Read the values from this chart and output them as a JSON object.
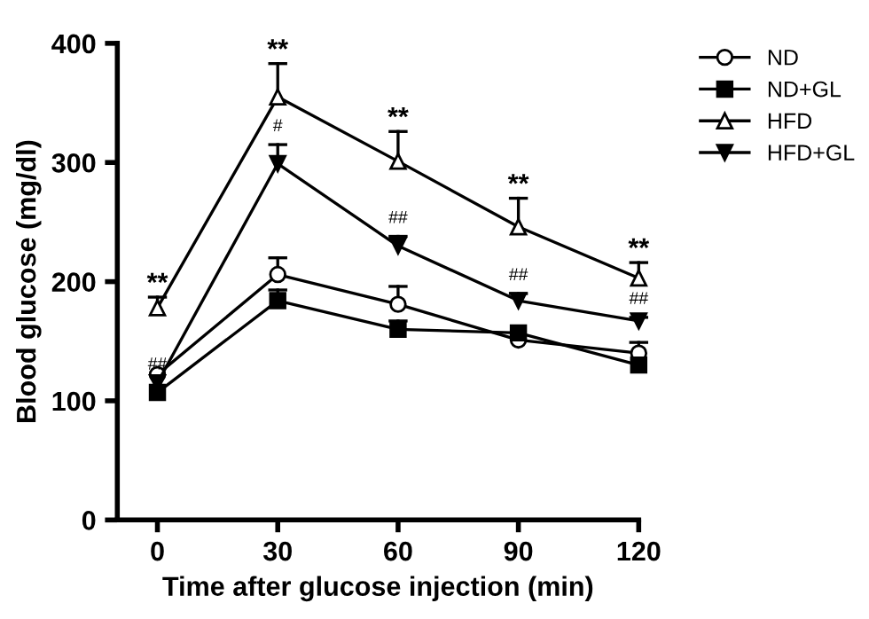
{
  "chart_data": {
    "type": "line",
    "xlabel": "Time after glucose injection (min)",
    "ylabel": "Blood glucose (mg/dl)",
    "x": [
      0,
      30,
      60,
      90,
      120
    ],
    "xlim": [
      -10,
      120
    ],
    "xticks": [
      0,
      30,
      60,
      90,
      120
    ],
    "ylim": [
      0,
      400
    ],
    "yticks": [
      0,
      100,
      200,
      300,
      400
    ],
    "grid": false,
    "legend": "top right",
    "line_style": "solid",
    "series": [
      {
        "name": "ND",
        "color": "#000000",
        "marker": "circle",
        "values": [
          122,
          206,
          181,
          151,
          140
        ],
        "errors": [
          null,
          [
            206,
            220
          ],
          [
            181,
            196
          ],
          null,
          [
            140,
            149
          ]
        ]
      },
      {
        "name": "ND+GL",
        "color": "#000000",
        "marker": "square",
        "values": [
          107,
          184,
          160,
          157,
          130
        ],
        "errors": [
          null,
          [
            184,
            193
          ],
          [
            160,
            167
          ],
          null,
          null
        ]
      },
      {
        "name": "HFD",
        "color": "#000000",
        "marker": "triangle",
        "values": [
          178,
          355,
          301,
          246,
          203
        ],
        "errors": [
          [
            178,
            187
          ],
          [
            355,
            383
          ],
          [
            301,
            326
          ],
          [
            246,
            270
          ],
          [
            203,
            216
          ]
        ]
      },
      {
        "name": "HFD+GL",
        "color": "#000000",
        "marker": "triangle_down",
        "values": [
          115,
          299,
          230,
          184,
          167
        ],
        "errors": [
          null,
          [
            299,
            315
          ],
          [
            230,
            238
          ],
          [
            184,
            190
          ],
          [
            167,
            170
          ]
        ]
      }
    ],
    "annotations": [
      {
        "text": "**",
        "x": 0,
        "y": 178
      },
      {
        "text": "**",
        "x": 30,
        "y": 355
      },
      {
        "text": "**",
        "x": 60,
        "y": 301
      },
      {
        "text": "**",
        "x": 90,
        "y": 246
      },
      {
        "text": "**",
        "x": 120,
        "y": 203
      },
      {
        "text": "##",
        "x": 0,
        "y": 115
      },
      {
        "text": "#",
        "x": 30,
        "y": 299
      },
      {
        "text": "##",
        "x": 60,
        "y": 230
      },
      {
        "text": "##",
        "x": 90,
        "y": 184
      },
      {
        "text": "##",
        "x": 120,
        "y": 167
      }
    ]
  }
}
